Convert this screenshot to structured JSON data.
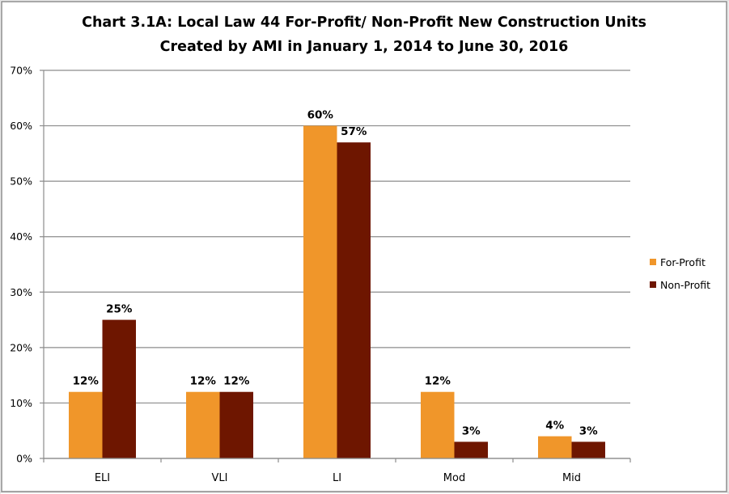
{
  "chart_data": {
    "type": "bar",
    "title_lines": [
      "Chart 3.1A: Local Law 44 For-Profit/ Non-Profit New Construction Units",
      "Created by AMI in January 1, 2014 to June 30, 2016"
    ],
    "xlabel": "",
    "ylabel": "",
    "categories": [
      "ELI",
      "VLI",
      "LI",
      "Mod",
      "Mid"
    ],
    "series": [
      {
        "name": "For-Profit",
        "color": "#F0962A",
        "values": [
          12,
          12,
          60,
          12,
          4
        ],
        "labels": [
          "12%",
          "12%",
          "60%",
          "12%",
          "4%"
        ]
      },
      {
        "name": "Non-Profit",
        "color": "#6E1600",
        "values": [
          25,
          12,
          57,
          3,
          3
        ],
        "labels": [
          "25%",
          "12%",
          "57%",
          "3%",
          "3%"
        ]
      }
    ],
    "ylim": [
      0,
      70
    ],
    "yticks": [
      0,
      10,
      20,
      30,
      40,
      50,
      60,
      70
    ],
    "ytick_labels": [
      "0%",
      "10%",
      "20%",
      "30%",
      "40%",
      "50%",
      "60%",
      "70%"
    ],
    "grid": true,
    "legend": {
      "position": "right",
      "entries": [
        "For-Profit",
        "Non-Profit"
      ]
    }
  }
}
